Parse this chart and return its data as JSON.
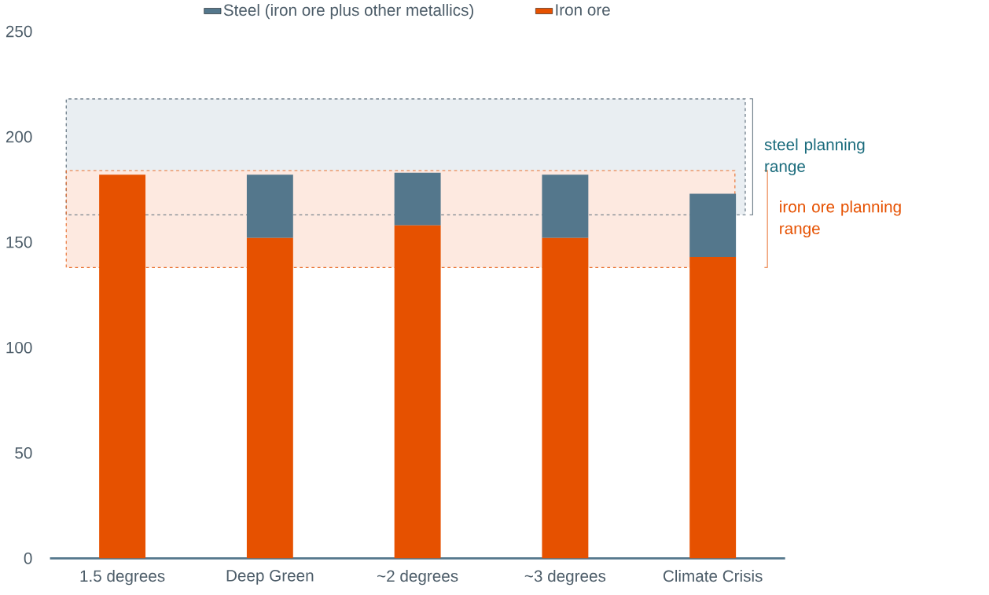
{
  "chart_data": {
    "type": "bar",
    "stacked": true,
    "categories": [
      "1.5 degrees",
      "Deep Green",
      "~2 degrees",
      "~3 degrees",
      "Climate Crisis"
    ],
    "series": [
      {
        "name": "Iron ore",
        "color": "#e65100",
        "values": [
          182,
          152,
          158,
          152,
          143
        ]
      },
      {
        "name": "Steel (iron ore plus other metallics)",
        "color": "#54778c",
        "values": [
          0,
          30,
          25,
          30,
          30
        ]
      }
    ],
    "ylim": [
      0,
      250
    ],
    "yticks": [
      0,
      50,
      100,
      150,
      200,
      250
    ],
    "grid": false,
    "legend": "top",
    "bands": [
      {
        "axis": "y",
        "from": 163,
        "to": 218,
        "label": "steel planning range",
        "color": "#e9eef2"
      },
      {
        "axis": "y",
        "from": 138,
        "to": 184,
        "label": "iron ore planning range",
        "color": "#fde9e0"
      }
    ]
  }
}
